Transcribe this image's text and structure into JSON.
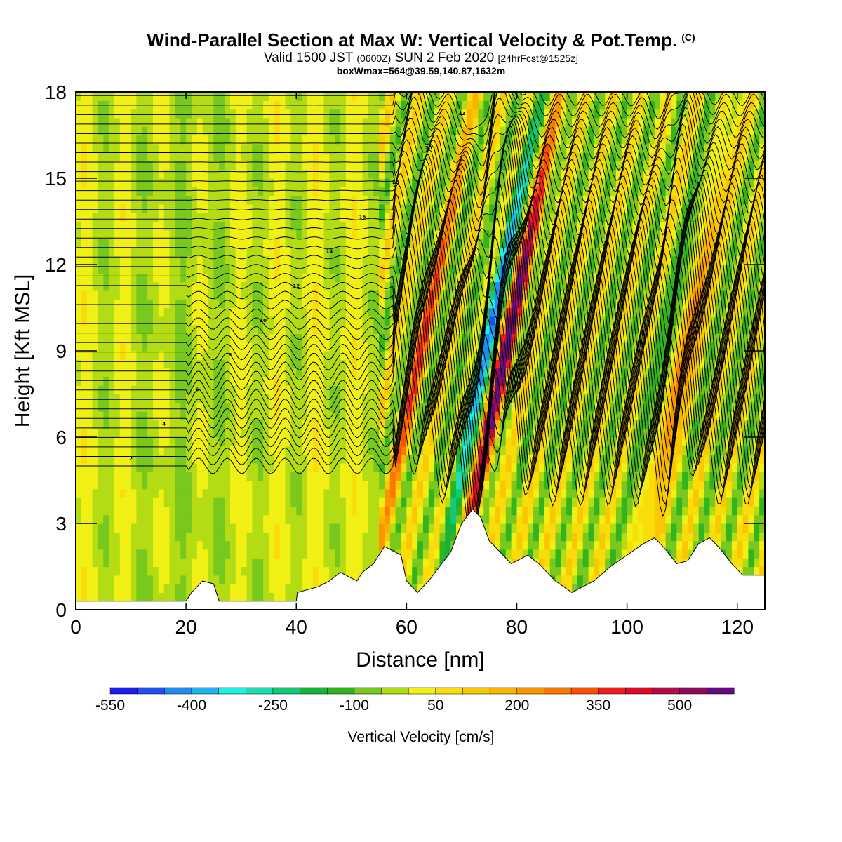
{
  "chart_data": {
    "type": "heatmap",
    "title": "Wind-Parallel Section at Max W: Vertical Velocity & Pot.Temp.",
    "title_mark": "(C)",
    "subtitle_main": "Valid 1500 JST ",
    "subtitle_zulu": "(0600Z)",
    "subtitle_date": " SUN 2 Feb 2020 ",
    "subtitle_fcst": "[24hrFcst@1525z]",
    "info": "boxWmax=564@39.59,140.87,1632m",
    "xlabel": "Distance [nm]",
    "ylabel": "Height [Kft MSL]",
    "xlim": [
      0,
      125
    ],
    "ylim": [
      0,
      18
    ],
    "x_ticks": [
      "0",
      "20",
      "40",
      "60",
      "80",
      "100",
      "120"
    ],
    "y_ticks": [
      "0",
      "3",
      "6",
      "9",
      "12",
      "15",
      "18"
    ],
    "colorbar_label": "Vertical Velocity [cm/s]",
    "colorbar_ticks": [
      "-550",
      "-400",
      "-250",
      "-100",
      "50",
      "200",
      "350",
      "500"
    ],
    "colorbar_colors": [
      "#1e1ef0",
      "#1e50f0",
      "#1e8cf0",
      "#1eb4f0",
      "#1ef0e6",
      "#1edcb4",
      "#14c878",
      "#14b43c",
      "#32b41e",
      "#78c81e",
      "#b4dc14",
      "#f0f014",
      "#fadc0a",
      "#fac800",
      "#fab400",
      "#fa9600",
      "#fa7800",
      "#fa5000",
      "#f01e1e",
      "#dc0a28",
      "#b40a46",
      "#8c0a5a",
      "#640a82"
    ],
    "colorbar_range": [
      -550,
      600
    ],
    "colorbar_step": 50,
    "wave_crests_x": [
      61,
      65,
      69,
      73.5,
      77.5,
      82,
      86,
      90,
      95,
      100,
      105,
      110,
      115,
      120
    ],
    "updraft_cores": [
      {
        "x": 77.5,
        "w_cm_s": 564
      },
      {
        "x": 110,
        "w_cm_s": 380
      },
      {
        "x": 62,
        "w_cm_s": 280
      }
    ],
    "downdraft_cores": [
      {
        "x": 73.5,
        "w_cm_s": -420
      },
      {
        "x": 107,
        "w_cm_s": -200
      }
    ],
    "terrain_profile": [
      {
        "x": 0,
        "kft": 0.3
      },
      {
        "x": 20,
        "kft": 0.3
      },
      {
        "x": 21,
        "kft": 0.6
      },
      {
        "x": 23,
        "kft": 1.0
      },
      {
        "x": 25,
        "kft": 0.9
      },
      {
        "x": 26,
        "kft": 0.3
      },
      {
        "x": 40,
        "kft": 0.3
      },
      {
        "x": 40.2,
        "kft": 0.6
      },
      {
        "x": 44,
        "kft": 0.8
      },
      {
        "x": 46,
        "kft": 1.0
      },
      {
        "x": 48,
        "kft": 1.3
      },
      {
        "x": 51,
        "kft": 1.0
      },
      {
        "x": 52,
        "kft": 1.3
      },
      {
        "x": 54,
        "kft": 1.6
      },
      {
        "x": 56,
        "kft": 2.2
      },
      {
        "x": 59,
        "kft": 1.9
      },
      {
        "x": 60,
        "kft": 1.0
      },
      {
        "x": 62,
        "kft": 0.6
      },
      {
        "x": 64,
        "kft": 1.0
      },
      {
        "x": 66,
        "kft": 1.5
      },
      {
        "x": 68,
        "kft": 2.0
      },
      {
        "x": 70,
        "kft": 3.0
      },
      {
        "x": 72,
        "kft": 3.5
      },
      {
        "x": 73.5,
        "kft": 3.2
      },
      {
        "x": 75,
        "kft": 2.4
      },
      {
        "x": 77,
        "kft": 2.0
      },
      {
        "x": 79,
        "kft": 1.6
      },
      {
        "x": 82,
        "kft": 1.9
      },
      {
        "x": 84,
        "kft": 1.6
      },
      {
        "x": 87,
        "kft": 1.0
      },
      {
        "x": 90,
        "kft": 0.6
      },
      {
        "x": 94,
        "kft": 1.0
      },
      {
        "x": 97,
        "kft": 1.5
      },
      {
        "x": 100,
        "kft": 1.9
      },
      {
        "x": 103,
        "kft": 2.3
      },
      {
        "x": 105,
        "kft": 2.5
      },
      {
        "x": 107,
        "kft": 2.1
      },
      {
        "x": 109,
        "kft": 1.6
      },
      {
        "x": 111,
        "kft": 1.7
      },
      {
        "x": 113,
        "kft": 2.3
      },
      {
        "x": 115,
        "kft": 2.5
      },
      {
        "x": 117,
        "kft": 2.1
      },
      {
        "x": 119,
        "kft": 1.6
      },
      {
        "x": 121,
        "kft": 1.2
      },
      {
        "x": 125,
        "kft": 1.2
      }
    ],
    "theta_contour_labels": [
      "2",
      "4",
      "6",
      "8",
      "10",
      "12",
      "14",
      "16",
      "18",
      "20",
      "22"
    ]
  }
}
